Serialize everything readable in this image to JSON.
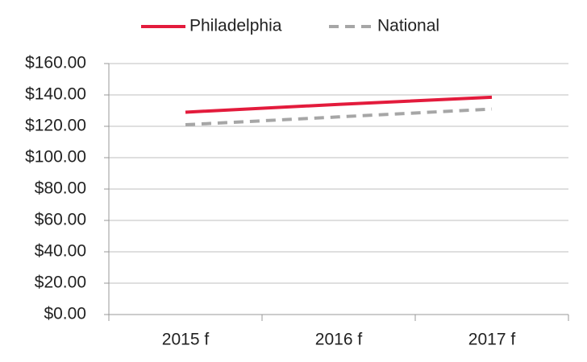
{
  "chart_data": {
    "type": "line",
    "categories": [
      "2015 f",
      "2016 f",
      "2017 f"
    ],
    "series": [
      {
        "name": "Philadelphia",
        "color": "#e31b3c",
        "dash": false,
        "values": [
          129,
          134,
          138.5
        ]
      },
      {
        "name": "National",
        "color": "#a6a6a6",
        "dash": true,
        "values": [
          121,
          126,
          131
        ]
      }
    ],
    "ylim": [
      0,
      160
    ],
    "yticks": [
      {
        "value": 0,
        "label": "$0.00"
      },
      {
        "value": 20,
        "label": "$20.00"
      },
      {
        "value": 40,
        "label": "$40.00"
      },
      {
        "value": 60,
        "label": "$60.00"
      },
      {
        "value": 80,
        "label": "$80.00"
      },
      {
        "value": 100,
        "label": "$100.00"
      },
      {
        "value": 120,
        "label": "$120.00"
      },
      {
        "value": 140,
        "label": "$140.00"
      },
      {
        "value": 160,
        "label": "$160.00"
      }
    ],
    "grid": true
  }
}
